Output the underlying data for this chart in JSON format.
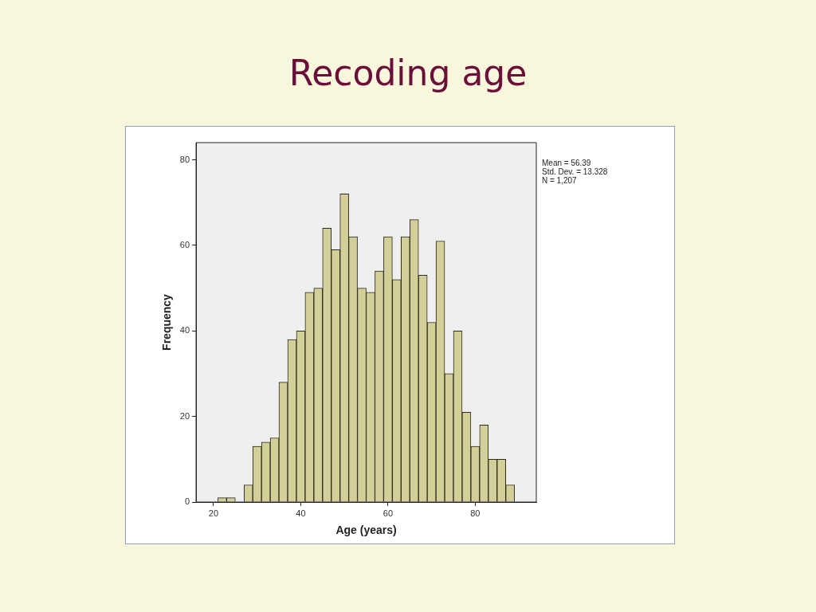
{
  "chart_data": {
    "type": "histogram",
    "title": "Recoding age",
    "xlabel": "Age (years)",
    "ylabel": "Frequency",
    "bins": [
      21,
      23,
      25,
      27,
      29,
      31,
      33,
      35,
      37,
      39,
      41,
      43,
      45,
      47,
      49,
      51,
      53,
      55,
      57,
      59,
      61,
      63,
      65,
      67,
      69,
      71,
      73,
      75,
      77,
      79,
      81,
      83,
      85,
      87,
      89
    ],
    "values": [
      1,
      1,
      0,
      4,
      13,
      14,
      15,
      28,
      38,
      40,
      49,
      50,
      64,
      59,
      72,
      62,
      50,
      49,
      54,
      62,
      52,
      62,
      66,
      53,
      42,
      61,
      30,
      40,
      21,
      13,
      18,
      10,
      10,
      4
    ],
    "color": "#d3cf98",
    "xlim": [
      16,
      94
    ],
    "xticks": [
      20,
      40,
      60,
      80
    ],
    "ylim": [
      0,
      84
    ],
    "yticks": [
      0,
      20,
      40,
      60,
      80
    ],
    "grid": false,
    "legend": false,
    "annotations": [
      "Mean = 56.39",
      "Std. Dev. = 13.328",
      "N = 1,207"
    ]
  }
}
